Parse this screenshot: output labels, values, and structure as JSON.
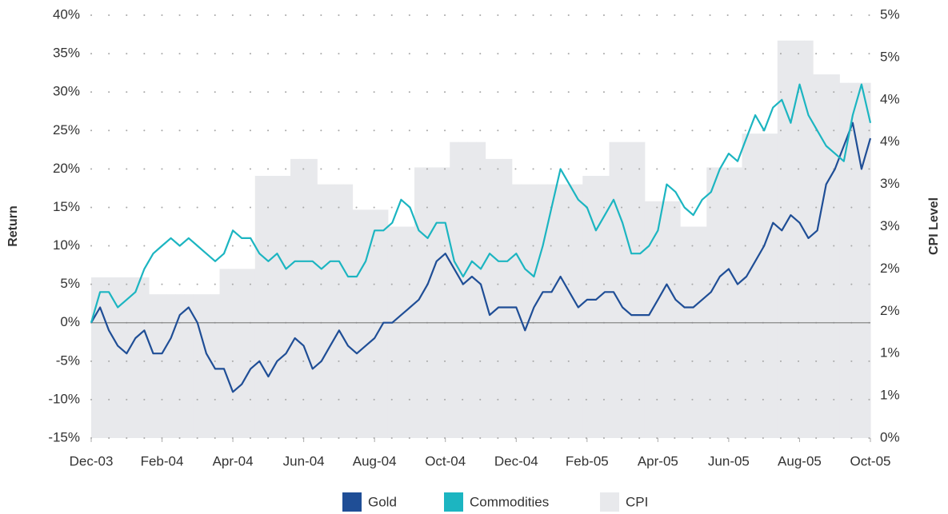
{
  "chart_data": {
    "type": "line",
    "ylabel": "Return",
    "y2label": "CPI Level",
    "categories": [
      "Dec-03",
      null,
      null,
      null,
      null,
      null,
      null,
      null,
      "Feb-04",
      null,
      null,
      null,
      null,
      null,
      null,
      null,
      "Apr-04",
      null,
      null,
      null,
      null,
      null,
      null,
      null,
      "Jun-04",
      null,
      null,
      null,
      null,
      null,
      null,
      null,
      "Aug-04",
      null,
      null,
      null,
      null,
      null,
      null,
      null,
      "Oct-04",
      null,
      null,
      null,
      null,
      null,
      null,
      null,
      "Dec-04",
      null,
      null,
      null,
      null,
      null,
      null,
      null,
      "Feb-05",
      null,
      null,
      null,
      null,
      null,
      null,
      null,
      "Apr-05",
      null,
      null,
      null,
      null,
      null,
      null,
      null,
      "Jun-05",
      null,
      null,
      null,
      null,
      null,
      null,
      null,
      "Aug-05",
      null,
      null,
      null,
      null,
      null,
      null,
      null,
      "Oct-05"
    ],
    "series": [
      {
        "name": "Gold",
        "color": "#1f4e96",
        "values": [
          0,
          2,
          -1,
          -3,
          -4,
          -2,
          -1,
          -4,
          -4,
          -2,
          1,
          2,
          0,
          -4,
          -6,
          -6,
          -9,
          -8,
          -6,
          -5,
          -7,
          -5,
          -4,
          -2,
          -3,
          -6,
          -5,
          -3,
          -1,
          -3,
          -4,
          -3,
          -2,
          0,
          0,
          1,
          2,
          3,
          5,
          8,
          9,
          7,
          5,
          6,
          5,
          1,
          2,
          2,
          2,
          -1,
          2,
          4,
          4,
          6,
          4,
          2,
          3,
          3,
          4,
          4,
          2,
          1,
          1,
          1,
          3,
          5,
          3,
          2,
          2,
          3,
          4,
          6,
          7,
          5,
          6,
          8,
          10,
          13,
          12,
          14,
          13,
          11,
          12,
          18,
          20,
          23,
          26,
          20,
          24
        ]
      },
      {
        "name": "Commodities",
        "color": "#1cb5c1",
        "values": [
          0,
          4,
          4,
          2,
          3,
          4,
          7,
          9,
          10,
          11,
          10,
          11,
          10,
          9,
          8,
          9,
          12,
          11,
          11,
          9,
          8,
          9,
          7,
          8,
          8,
          8,
          7,
          8,
          8,
          6,
          6,
          8,
          12,
          12,
          13,
          16,
          15,
          12,
          11,
          13,
          13,
          8,
          6,
          8,
          7,
          9,
          8,
          8,
          9,
          7,
          6,
          10,
          15,
          20,
          18,
          16,
          15,
          12,
          14,
          16,
          13,
          9,
          9,
          10,
          12,
          18,
          17,
          15,
          14,
          16,
          17,
          20,
          22,
          21,
          24,
          27,
          25,
          28,
          29,
          26,
          31,
          27,
          25,
          23,
          22,
          21,
          27,
          31,
          26
        ]
      },
      {
        "name": "CPI",
        "color": "#e8e9ec",
        "axis": "y2",
        "values": [
          1.9,
          1.9,
          1.9,
          1.9,
          1.9,
          1.9,
          1.9,
          1.7,
          1.7,
          1.7,
          1.7,
          1.7,
          1.7,
          1.7,
          1.7,
          2.0,
          2.0,
          2.0,
          2.0,
          3.1,
          3.1,
          3.1,
          3.1,
          3.3,
          3.3,
          3.3,
          3.0,
          3.0,
          3.0,
          3.0,
          2.7,
          2.7,
          2.7,
          2.7,
          2.5,
          2.5,
          2.5,
          3.2,
          3.2,
          3.2,
          3.2,
          3.5,
          3.5,
          3.5,
          3.5,
          3.3,
          3.3,
          3.3,
          3.0,
          3.0,
          3.0,
          3.0,
          3.0,
          3.0,
          3.0,
          3.0,
          3.1,
          3.1,
          3.1,
          3.5,
          3.5,
          3.5,
          3.5,
          2.8,
          2.8,
          2.8,
          2.8,
          2.5,
          2.5,
          2.5,
          3.2,
          3.2,
          3.2,
          3.2,
          3.6,
          3.6,
          3.6,
          3.6,
          4.7,
          4.7,
          4.7,
          4.7,
          4.3,
          4.3,
          4.3,
          4.2,
          4.2,
          4.2,
          4.2
        ]
      }
    ],
    "ylim": [
      -15,
      40
    ],
    "yticks": [
      {
        "value": -15,
        "label": "-15%"
      },
      {
        "value": -10,
        "label": "-10%"
      },
      {
        "value": -5,
        "label": "-5%"
      },
      {
        "value": 0,
        "label": "0%"
      },
      {
        "value": 5,
        "label": "5%"
      },
      {
        "value": 10,
        "label": "10%"
      },
      {
        "value": 15,
        "label": "15%"
      },
      {
        "value": 20,
        "label": "20%"
      },
      {
        "value": 25,
        "label": "25%"
      },
      {
        "value": 30,
        "label": "30%"
      },
      {
        "value": 35,
        "label": "35%"
      },
      {
        "value": 40,
        "label": "40%"
      }
    ],
    "y2lim": [
      0,
      5
    ],
    "y2ticks": [
      {
        "value": 0,
        "label": "0%"
      },
      {
        "value": 0.5,
        "label": "1%"
      },
      {
        "value": 1,
        "label": "1%"
      },
      {
        "value": 1.5,
        "label": "2%"
      },
      {
        "value": 2,
        "label": "2%"
      },
      {
        "value": 2.5,
        "label": "3%"
      },
      {
        "value": 3,
        "label": "3%"
      },
      {
        "value": 3.5,
        "label": "4%"
      },
      {
        "value": 4,
        "label": "4%"
      },
      {
        "value": 4.5,
        "label": "5%"
      },
      {
        "value": 5,
        "label": "5%"
      }
    ],
    "grid": true,
    "legend": "bottom"
  }
}
